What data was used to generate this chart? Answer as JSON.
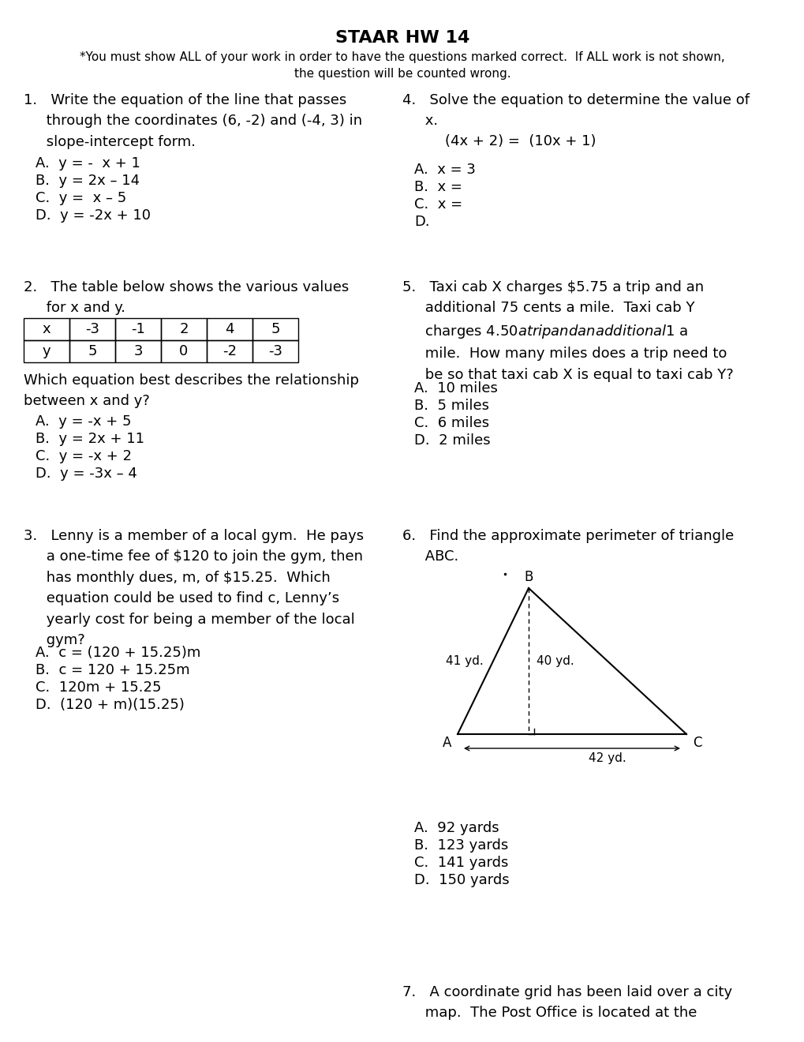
{
  "title": "STAAR HW 14",
  "subtitle": "*You must show ALL of your work in order to have the questions marked correct.  If ALL work is not shown,\nthe question will be counted wrong.",
  "bg_color": "#ffffff",
  "text_color": "#000000",
  "font_size": 13,
  "title_font_size": 16,
  "q1_text": "1.   Write the equation of the line that passes\n     through the coordinates (6, -2) and (-4, 3) in\n     slope-intercept form.",
  "q1_choices": [
    "A.  y = -  x + 1",
    "B.  y = 2x – 14",
    "C.  y =  x – 5",
    "D.  y = -2x + 10"
  ],
  "q2_text": "2.   The table below shows the various values\n     for x and y.",
  "q2_table_x": [
    "x",
    "-3",
    "-1",
    "2",
    "4",
    "5"
  ],
  "q2_table_y": [
    "y",
    "5",
    "3",
    "0",
    "-2",
    "-3"
  ],
  "q2_sub": "Which equation best describes the relationship\nbetween x and y?",
  "q2_choices": [
    "A.  y = -x + 5",
    "B.  y = 2x + 11",
    "C.  y = -x + 2",
    "D.  y = -3x – 4"
  ],
  "q3_text": "3.   Lenny is a member of a local gym.  He pays\n     a one-time fee of $120 to join the gym, then\n     has monthly dues, m, of $15.25.  Which\n     equation could be used to find c, Lenny’s\n     yearly cost for being a member of the local\n     gym?",
  "q3_choices": [
    "A.  c = (120 + 15.25)m",
    "B.  c = 120 + 15.25m",
    "C.  120m + 15.25",
    "D.  (120 + m)(15.25)"
  ],
  "q4_text": "4.   Solve the equation to determine the value of\n     x.",
  "q4_eq": "(4x + 2) =  (10x + 1)",
  "q4_choices": [
    "A.  x = 3",
    "B.  x =",
    "C.  x =",
    "D."
  ],
  "q5_text": "5.   Taxi cab X charges $5.75 a trip and an\n     additional 75 cents a mile.  Taxi cab Y\n     charges $4.50 a trip and an additional $1 a\n     mile.  How many miles does a trip need to\n     be so that taxi cab X is equal to taxi cab Y?",
  "q5_choices": [
    "A.  10 miles",
    "B.  5 miles",
    "C.  6 miles",
    "D.  2 miles"
  ],
  "q6_text": "6.   Find the approximate perimeter of triangle\n     ABC.",
  "q6_choices": [
    "A.  92 yards",
    "B.  123 yards",
    "C.  141 yards",
    "D.  150 yards"
  ],
  "q7_text": "7.   A coordinate grid has been laid over a city\n     map.  The Post Office is located at the"
}
